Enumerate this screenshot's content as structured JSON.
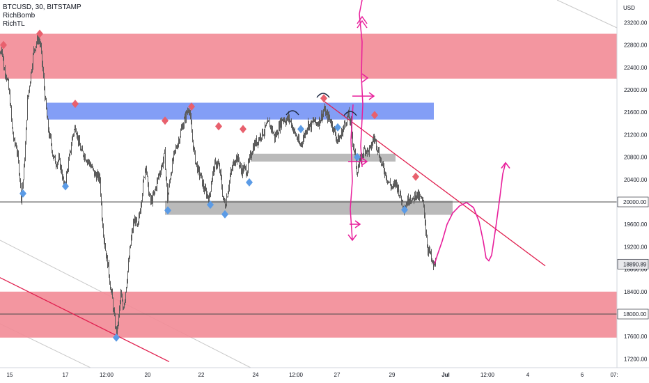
{
  "legend": {
    "symbol": "BTCUSD, 30, BITSTAMP",
    "indicator1": "RichBomb",
    "indicator2": "RichTL"
  },
  "price_axis": {
    "currency": "USD",
    "labels": [
      "23200.00",
      "22800.00",
      "22400.00",
      "22000.00",
      "21600.00",
      "21200.00",
      "20800.00",
      "20400.00",
      "20000.00",
      "19600.00",
      "19200.00",
      "18890.89",
      "18800.00",
      "18400.00",
      "18000.00",
      "17600.00",
      "17200.00"
    ]
  },
  "time_axis": {
    "labels": [
      "15",
      "17",
      "12:00",
      "20",
      "22",
      "24",
      "12:00",
      "27",
      "29",
      "Jul",
      "12:00",
      "4",
      "6",
      "07:"
    ]
  },
  "price_badges": {
    "level_a": "20000.00",
    "last_price": "18890.89",
    "level_b": "18000.00"
  },
  "colors": {
    "resistance_zone": "#f28b96",
    "support_zone": "#f28b96",
    "blue_zone": "#6d8df5",
    "gray_zone": "#b6b6b6",
    "candles": "#5c5c5c",
    "up_marker": "#e8606d",
    "down_marker": "#5b9be6",
    "trendline": "#e0204f",
    "drawing": "#e81e9b",
    "axis_text": "#131722"
  },
  "chart_data": {
    "type": "candlestick",
    "symbol": "BTCUSD",
    "interval": "30",
    "exchange": "BITSTAMP",
    "ylim": [
      17100,
      23600
    ],
    "y_ticks": [
      17200,
      17600,
      18000,
      18400,
      18800,
      19200,
      19600,
      20000,
      20400,
      20800,
      21200,
      21600,
      22000,
      22400,
      22800,
      23200
    ],
    "last_price": 18890.89,
    "horizontal_levels": [
      20000,
      18000
    ],
    "zones": [
      {
        "kind": "resistance",
        "from": 22200,
        "to": 23000
      },
      {
        "kind": "resistance_blue",
        "from": 21470,
        "to": 21770
      },
      {
        "kind": "gray",
        "from": 20720,
        "to": 20860
      },
      {
        "kind": "gray",
        "from": 19770,
        "to": 20020
      },
      {
        "kind": "support",
        "from": 17580,
        "to": 18400
      }
    ],
    "price_path": [
      [
        0,
        22650
      ],
      [
        2,
        22780
      ],
      [
        5,
        22400
      ],
      [
        8,
        22300
      ],
      [
        11,
        22100
      ],
      [
        14,
        21800
      ],
      [
        17,
        21300
      ],
      [
        20,
        21050
      ],
      [
        23,
        21000
      ],
      [
        25,
        20800
      ],
      [
        28,
        20450
      ],
      [
        30,
        20100
      ],
      [
        33,
        20400
      ],
      [
        36,
        21000
      ],
      [
        39,
        21800
      ],
      [
        42,
        22100
      ],
      [
        45,
        22400
      ],
      [
        48,
        22700
      ],
      [
        52,
        22850
      ],
      [
        55,
        22950
      ],
      [
        58,
        22750
      ],
      [
        61,
        22350
      ],
      [
        64,
        21900
      ],
      [
        67,
        21500
      ],
      [
        70,
        21200
      ],
      [
        73,
        21050
      ],
      [
        76,
        20800
      ],
      [
        80,
        20700
      ],
      [
        84,
        20750
      ],
      [
        88,
        20550
      ],
      [
        92,
        20250
      ],
      [
        96,
        20550
      ],
      [
        100,
        20850
      ],
      [
        104,
        21200
      ],
      [
        108,
        21350
      ],
      [
        112,
        21100
      ],
      [
        116,
        20900
      ],
      [
        120,
        20850
      ],
      [
        125,
        20750
      ],
      [
        130,
        20650
      ],
      [
        135,
        20500
      ],
      [
        140,
        20450
      ],
      [
        143,
        20400
      ],
      [
        146,
        19750
      ],
      [
        149,
        19350
      ],
      [
        152,
        19050
      ],
      [
        155,
        18850
      ],
      [
        158,
        18500
      ],
      [
        161,
        18250
      ],
      [
        164,
        17900
      ],
      [
        167,
        17620
      ],
      [
        170,
        17950
      ],
      [
        173,
        18350
      ],
      [
        176,
        18100
      ],
      [
        179,
        18300
      ],
      [
        182,
        18650
      ],
      [
        185,
        19000
      ],
      [
        188,
        19350
      ],
      [
        191,
        19600
      ],
      [
        194,
        19700
      ],
      [
        197,
        19500
      ],
      [
        200,
        19800
      ],
      [
        203,
        20100
      ],
      [
        206,
        20400
      ],
      [
        209,
        20700
      ],
      [
        212,
        20250
      ],
      [
        216,
        20000
      ],
      [
        220,
        20100
      ],
      [
        224,
        20300
      ],
      [
        228,
        20500
      ],
      [
        232,
        20650
      ],
      [
        236,
        20850
      ],
      [
        240,
        20050
      ],
      [
        244,
        20450
      ],
      [
        248,
        20750
      ],
      [
        252,
        20950
      ],
      [
        256,
        21100
      ],
      [
        260,
        21300
      ],
      [
        264,
        21450
      ],
      [
        268,
        21600
      ],
      [
        271,
        21700
      ],
      [
        274,
        21350
      ],
      [
        277,
        21000
      ],
      [
        280,
        20750
      ],
      [
        284,
        20550
      ],
      [
        288,
        20450
      ],
      [
        292,
        20250
      ],
      [
        296,
        20150
      ],
      [
        300,
        20050
      ],
      [
        304,
        20450
      ],
      [
        308,
        20650
      ],
      [
        312,
        20700
      ],
      [
        316,
        20500
      ],
      [
        320,
        20050
      ],
      [
        323,
        19950
      ],
      [
        326,
        20150
      ],
      [
        330,
        20450
      ],
      [
        334,
        20650
      ],
      [
        338,
        20800
      ],
      [
        342,
        20750
      ],
      [
        346,
        20550
      ],
      [
        350,
        20600
      ],
      [
        354,
        20550
      ],
      [
        358,
        20750
      ],
      [
        362,
        20950
      ],
      [
        366,
        21050
      ],
      [
        370,
        21100
      ],
      [
        374,
        21200
      ],
      [
        378,
        21250
      ],
      [
        382,
        21350
      ],
      [
        386,
        21400
      ],
      [
        390,
        21300
      ],
      [
        394,
        21150
      ],
      [
        398,
        21250
      ],
      [
        402,
        21400
      ],
      [
        406,
        21500
      ],
      [
        410,
        21450
      ],
      [
        414,
        21500
      ],
      [
        418,
        21400
      ],
      [
        422,
        21250
      ],
      [
        426,
        21150
      ],
      [
        430,
        21000
      ],
      [
        434,
        21100
      ],
      [
        438,
        21250
      ],
      [
        442,
        21400
      ],
      [
        446,
        21350
      ],
      [
        450,
        21450
      ],
      [
        454,
        21400
      ],
      [
        458,
        21450
      ],
      [
        462,
        21550
      ],
      [
        465,
        21650
      ],
      [
        468,
        21550
      ],
      [
        472,
        21500
      ],
      [
        476,
        21400
      ],
      [
        480,
        21250
      ],
      [
        484,
        21100
      ],
      [
        488,
        21150
      ],
      [
        492,
        21300
      ],
      [
        496,
        21450
      ],
      [
        500,
        21550
      ],
      [
        503,
        21400
      ],
      [
        506,
        21100
      ],
      [
        509,
        20850
      ],
      [
        512,
        20550
      ],
      [
        516,
        20700
      ],
      [
        520,
        20850
      ],
      [
        524,
        20950
      ],
      [
        528,
        20900
      ],
      [
        532,
        20950
      ],
      [
        536,
        21150
      ],
      [
        540,
        21050
      ],
      [
        544,
        20850
      ],
      [
        548,
        20650
      ],
      [
        552,
        20550
      ],
      [
        556,
        20400
      ],
      [
        560,
        20300
      ],
      [
        564,
        20250
      ],
      [
        568,
        20350
      ],
      [
        572,
        20200
      ],
      [
        576,
        20050
      ],
      [
        580,
        19900
      ],
      [
        584,
        20000
      ],
      [
        588,
        20100
      ],
      [
        592,
        20000
      ],
      [
        596,
        20150
      ],
      [
        600,
        20100
      ],
      [
        604,
        20050
      ],
      [
        608,
        19950
      ],
      [
        611,
        19500
      ],
      [
        614,
        19150
      ],
      [
        617,
        19100
      ],
      [
        620,
        18900
      ],
      [
        623,
        18850
      ],
      [
        626,
        18950
      ]
    ],
    "arrow_markers": {
      "up": [
        [
          5,
          22800
        ],
        [
          57,
          23000
        ],
        [
          108,
          21750
        ],
        [
          237,
          21450
        ],
        [
          275,
          21700
        ],
        [
          314,
          21350
        ],
        [
          349,
          21300
        ],
        [
          465,
          21850
        ],
        [
          538,
          21550
        ],
        [
          597,
          20450
        ]
      ],
      "down": [
        [
          33,
          20150
        ],
        [
          94,
          20280
        ],
        [
          241,
          19850
        ],
        [
          302,
          19950
        ],
        [
          323,
          19780
        ],
        [
          358,
          20350
        ],
        [
          432,
          21300
        ],
        [
          485,
          21330
        ],
        [
          513,
          20800
        ],
        [
          581,
          19860
        ],
        [
          167,
          17580
        ]
      ]
    },
    "trendlines": [
      {
        "from": [
          465,
          21800
        ],
        "to": [
          783,
          18860
        ]
      },
      {
        "from": [
          0,
          18650
        ],
        "to": [
          243,
          17150
        ]
      }
    ],
    "projection_path": [
      [
        624,
        18890
      ],
      [
        628,
        19050
      ],
      [
        635,
        19300
      ],
      [
        642,
        19600
      ],
      [
        650,
        19800
      ],
      [
        660,
        19930
      ],
      [
        670,
        19990
      ],
      [
        680,
        19900
      ],
      [
        688,
        19650
      ],
      [
        694,
        19300
      ],
      [
        698,
        19000
      ],
      [
        702,
        18950
      ],
      [
        706,
        19050
      ],
      [
        712,
        19550
      ],
      [
        718,
        20100
      ],
      [
        722,
        20500
      ],
      [
        726,
        20700
      ]
    ]
  }
}
